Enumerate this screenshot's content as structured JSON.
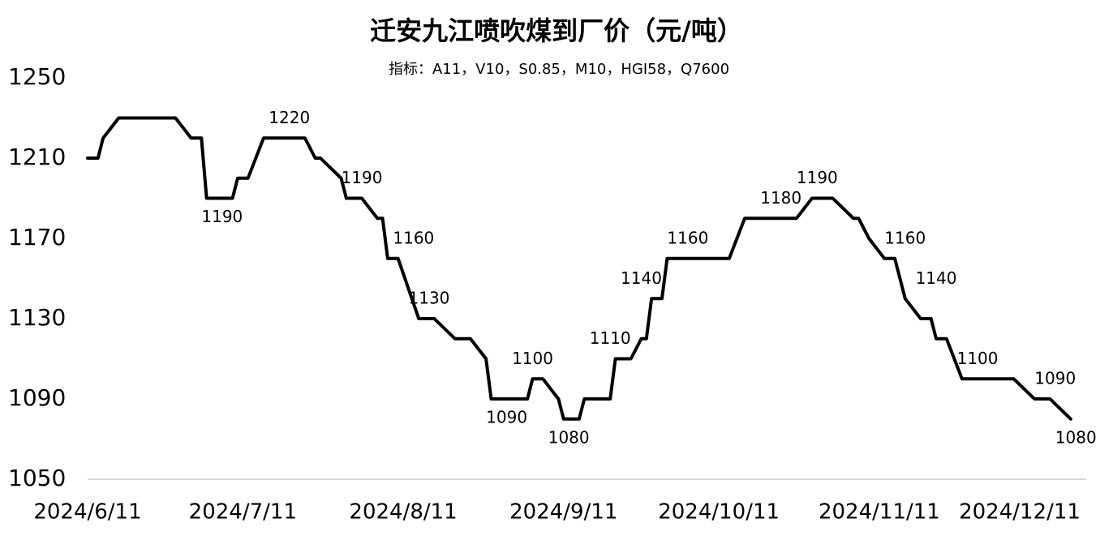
{
  "chart_data": {
    "type": "line",
    "title": "迁安九江喷吹煤到厂价（元/吨）",
    "subtitle": "指标：A11，V10，S0.85，M10，HGI58，Q7600",
    "x": [
      "2024/6/11",
      "2024/6/13",
      "2024/6/14",
      "2024/6/17",
      "2024/6/28",
      "2024/7/1",
      "2024/7/3",
      "2024/7/4",
      "2024/7/9",
      "2024/7/10",
      "2024/7/12",
      "2024/7/15",
      "2024/7/23",
      "2024/7/25",
      "2024/7/26",
      "2024/7/30",
      "2024/7/31",
      "2024/8/3",
      "2024/8/6",
      "2024/8/7",
      "2024/8/8",
      "2024/8/10",
      "2024/8/14",
      "2024/8/17",
      "2024/8/21",
      "2024/8/24",
      "2024/8/27",
      "2024/8/28",
      "2024/9/4",
      "2024/9/5",
      "2024/9/7",
      "2024/9/10",
      "2024/9/11",
      "2024/9/14",
      "2024/9/15",
      "2024/9/20",
      "2024/9/21",
      "2024/9/24",
      "2024/9/26",
      "2024/9/27",
      "2024/9/28",
      "2024/9/30",
      "2024/10/1",
      "2024/10/8",
      "2024/10/13",
      "2024/10/16",
      "2024/10/26",
      "2024/10/29",
      "2024/11/2",
      "2024/11/6",
      "2024/11/7",
      "2024/11/9",
      "2024/11/12",
      "2024/11/14",
      "2024/11/16",
      "2024/11/19",
      "2024/11/21",
      "2024/11/22",
      "2024/11/24",
      "2024/11/27",
      "2024/12/7",
      "2024/12/11",
      "2024/12/14",
      "2024/12/18"
    ],
    "series": [
      {
        "name": "迁安九江喷吹煤到厂价",
        "color": "#000000",
        "values": [
          1210,
          1210,
          1220,
          1230,
          1230,
          1220,
          1220,
          1190,
          1190,
          1200,
          1200,
          1220,
          1220,
          1210,
          1210,
          1200,
          1190,
          1190,
          1180,
          1180,
          1160,
          1160,
          1130,
          1130,
          1120,
          1120,
          1110,
          1090,
          1090,
          1100,
          1100,
          1090,
          1080,
          1080,
          1090,
          1090,
          1110,
          1110,
          1120,
          1120,
          1140,
          1140,
          1160,
          1160,
          1160,
          1180,
          1180,
          1190,
          1190,
          1180,
          1180,
          1170,
          1160,
          1160,
          1140,
          1130,
          1130,
          1120,
          1120,
          1100,
          1100,
          1090,
          1090,
          1080
        ]
      }
    ],
    "data_labels": [
      {
        "x": "2024/7/7",
        "value": 1190,
        "position": "below"
      },
      {
        "x": "2024/7/20",
        "value": 1220,
        "position": "above"
      },
      {
        "x": "2024/8/3",
        "value": 1190,
        "position": "above"
      },
      {
        "x": "2024/8/13",
        "value": 1160,
        "position": "above"
      },
      {
        "x": "2024/8/16",
        "value": 1130,
        "position": "above"
      },
      {
        "x": "2024/8/31",
        "value": 1090,
        "position": "below"
      },
      {
        "x": "2024/9/5",
        "value": 1100,
        "position": "above"
      },
      {
        "x": "2024/9/12",
        "value": 1080,
        "position": "below"
      },
      {
        "x": "2024/9/20",
        "value": 1110,
        "position": "above"
      },
      {
        "x": "2024/9/26",
        "value": 1140,
        "position": "above"
      },
      {
        "x": "2024/10/5",
        "value": 1160,
        "position": "above"
      },
      {
        "x": "2024/10/23",
        "value": 1180,
        "position": "above"
      },
      {
        "x": "2024/10/30",
        "value": 1190,
        "position": "above"
      },
      {
        "x": "2024/11/16",
        "value": 1160,
        "position": "above"
      },
      {
        "x": "2024/11/22",
        "value": 1140,
        "position": "above"
      },
      {
        "x": "2024/11/30",
        "value": 1100,
        "position": "above"
      },
      {
        "x": "2024/12/15",
        "value": 1090,
        "position": "above"
      },
      {
        "x": "2024/12/19",
        "value": 1080,
        "position": "below"
      }
    ],
    "xlim": [
      "2024/6/11",
      "2024/12/21"
    ],
    "xticks": [
      "2024/6/11",
      "2024/7/11",
      "2024/8/11",
      "2024/9/11",
      "2024/10/11",
      "2024/11/11",
      "2024/12/11"
    ],
    "ylim": [
      1050,
      1250
    ],
    "yticks": [
      1050,
      1090,
      1130,
      1170,
      1210,
      1250
    ],
    "grid": false
  }
}
